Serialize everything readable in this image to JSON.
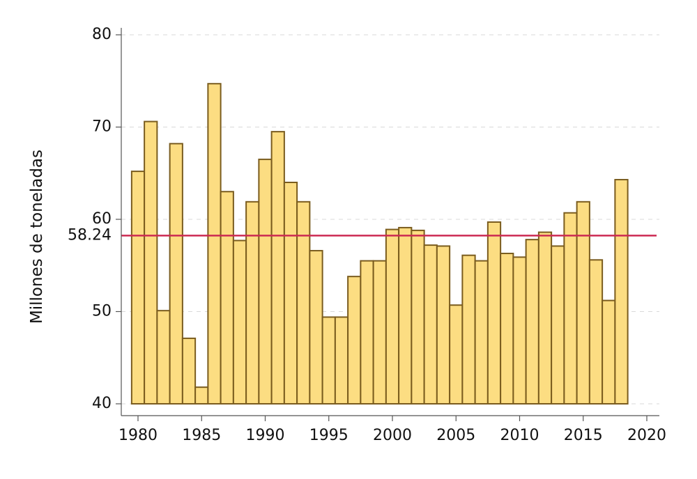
{
  "chart_data": {
    "type": "bar",
    "title": "",
    "xlabel": "",
    "ylabel": "Millones de toneladas",
    "ylim": [
      40,
      80
    ],
    "xlim": [
      1979.5,
      2021
    ],
    "yticks": [
      40,
      50,
      60,
      70,
      80
    ],
    "xticks": [
      1980,
      1985,
      1990,
      1995,
      2000,
      2005,
      2010,
      2015,
      2020
    ],
    "grid": "horizontal dashed",
    "reference_line": {
      "value": 58.24,
      "label": "58.24",
      "color": "#cc2a52"
    },
    "bar_color": "#fcdd82",
    "bar_edge_color": "#7a5c1e",
    "categories": [
      1980,
      1981,
      1982,
      1983,
      1984,
      1985,
      1986,
      1987,
      1988,
      1989,
      1990,
      1991,
      1992,
      1993,
      1994,
      1995,
      1996,
      1997,
      1998,
      1999,
      2000,
      2001,
      2002,
      2003,
      2004,
      2005,
      2006,
      2007,
      2008,
      2009,
      2010,
      2011,
      2012,
      2013,
      2014,
      2015,
      2016,
      2017,
      2018
    ],
    "values": [
      65.2,
      70.6,
      50.1,
      68.2,
      47.1,
      41.8,
      74.7,
      63.0,
      57.7,
      61.9,
      66.5,
      69.5,
      64.0,
      61.9,
      56.6,
      49.4,
      49.4,
      53.8,
      55.5,
      55.5,
      58.9,
      59.1,
      58.8,
      57.2,
      57.1,
      50.7,
      56.1,
      55.5,
      59.7,
      56.3,
      55.9,
      57.8,
      58.6,
      57.1,
      60.7,
      61.9,
      55.6,
      51.2,
      64.3
    ]
  }
}
